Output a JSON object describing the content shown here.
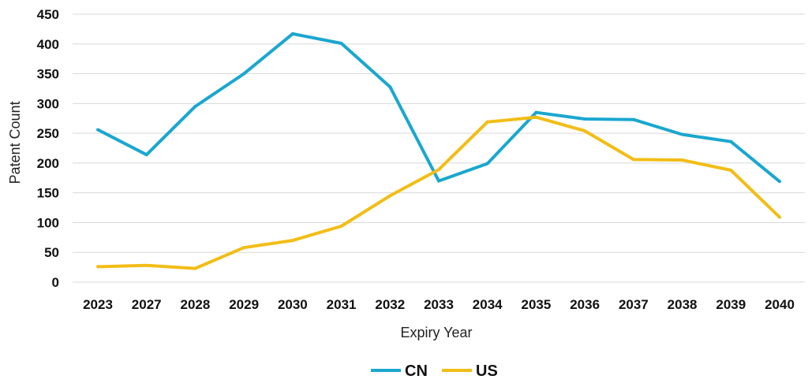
{
  "chart_data": {
    "type": "line",
    "categories": [
      "2023",
      "2027",
      "2028",
      "2029",
      "2030",
      "2031",
      "2032",
      "2033",
      "2034",
      "2035",
      "2036",
      "2037",
      "2038",
      "2039",
      "2040"
    ],
    "series": [
      {
        "name": "CN",
        "color": "#1AA7CF",
        "values": [
          256,
          214,
          295,
          350,
          417,
          401,
          328,
          170,
          199,
          285,
          274,
          273,
          248,
          236,
          169
        ]
      },
      {
        "name": "US",
        "color": "#F2BD16",
        "values": [
          26,
          28,
          23,
          58,
          70,
          94,
          145,
          189,
          269,
          277,
          254,
          206,
          205,
          188,
          109
        ]
      }
    ],
    "title": "",
    "xlabel": "Expiry Year",
    "ylabel": "Patent Count",
    "ylim": [
      0,
      450
    ],
    "yticks": [
      0,
      50,
      100,
      150,
      200,
      250,
      300,
      350,
      400,
      450
    ],
    "grid": true,
    "legend_position": "bottom-center"
  }
}
